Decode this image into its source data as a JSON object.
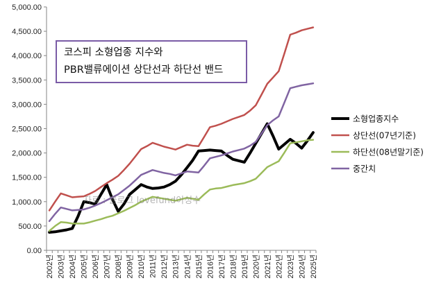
{
  "chart_data": {
    "type": "line",
    "title_lines": [
      "코스피 소형업종 지수와",
      "PBR밸류에이션 상단선과 하단선 밴드"
    ],
    "watermark": "자료 : 블로그 lovefund이성수",
    "ylim": [
      0,
      5000
    ],
    "yticks": [
      "0.00",
      "500.00",
      "1,000.00",
      "1,500.00",
      "2,000.00",
      "2,500.00",
      "3,000.00",
      "3,500.00",
      "4,000.00",
      "4,500.00",
      "5,000.00"
    ],
    "categories": [
      "2002년",
      "",
      "2003년",
      "",
      "2004년",
      "",
      "2005년",
      "",
      "2006년",
      "",
      "2007년",
      "",
      "2008년",
      "",
      "2009년",
      "",
      "2010년",
      "",
      "2011년",
      "",
      "2012년",
      "",
      "2013년",
      "",
      "2014년",
      "",
      "2015년",
      "",
      "2016년",
      "",
      "2017년",
      "",
      "2018년",
      "",
      "2019년",
      "",
      "2020년",
      "",
      "2021년",
      "",
      "2022년",
      "",
      "2023년",
      "",
      "2024년",
      "",
      "2025년"
    ],
    "grid": false,
    "legend_position": "right",
    "series": [
      {
        "name": "소형업종지수",
        "color": "#000000",
        "width": 4,
        "values": [
          370,
          380,
          400,
          420,
          450,
          700,
          1000,
          980,
          950,
          1150,
          1350,
          1050,
          800,
          950,
          1150,
          1250,
          1350,
          1300,
          1270,
          1280,
          1300,
          1350,
          1420,
          1550,
          1700,
          1850,
          2040,
          2050,
          2060,
          2050,
          2040,
          1950,
          1870,
          1840,
          1810,
          2000,
          2200,
          2400,
          2600,
          2350,
          2080,
          2180,
          2280,
          2200,
          2100,
          2250,
          2420
        ]
      },
      {
        "name": "상단선(07년기준)",
        "color": "#c0504d",
        "width": 2.5,
        "values": [
          820,
          1000,
          1170,
          1130,
          1090,
          1100,
          1110,
          1160,
          1220,
          1300,
          1380,
          1450,
          1530,
          1650,
          1780,
          1930,
          2080,
          2140,
          2210,
          2170,
          2130,
          2100,
          2070,
          2120,
          2170,
          2150,
          2140,
          2330,
          2530,
          2560,
          2600,
          2650,
          2700,
          2740,
          2780,
          2870,
          2980,
          3200,
          3420,
          3550,
          3680,
          4050,
          4430,
          4470,
          4520,
          4550,
          4580
        ]
      },
      {
        "name": "하단선(08년말기준)",
        "color": "#9bbb59",
        "width": 2.5,
        "values": [
          400,
          500,
          580,
          570,
          550,
          550,
          550,
          575,
          610,
          640,
          680,
          710,
          760,
          810,
          870,
          930,
          1000,
          1050,
          1100,
          1080,
          1060,
          1040,
          1020,
          1050,
          1080,
          1060,
          1040,
          1150,
          1250,
          1270,
          1280,
          1310,
          1340,
          1360,
          1380,
          1420,
          1470,
          1590,
          1710,
          1770,
          1830,
          2010,
          2200,
          2220,
          2240,
          2260,
          2270
        ]
      },
      {
        "name": "중간치",
        "color": "#8064a2",
        "width": 2.5,
        "values": [
          600,
          750,
          880,
          850,
          820,
          830,
          840,
          875,
          920,
          970,
          1030,
          1090,
          1150,
          1240,
          1330,
          1440,
          1550,
          1600,
          1650,
          1620,
          1590,
          1570,
          1540,
          1580,
          1620,
          1610,
          1600,
          1740,
          1890,
          1920,
          1950,
          1990,
          2030,
          2060,
          2090,
          2150,
          2230,
          2400,
          2570,
          2670,
          2750,
          3040,
          3330,
          3360,
          3390,
          3410,
          3430
        ]
      }
    ]
  }
}
